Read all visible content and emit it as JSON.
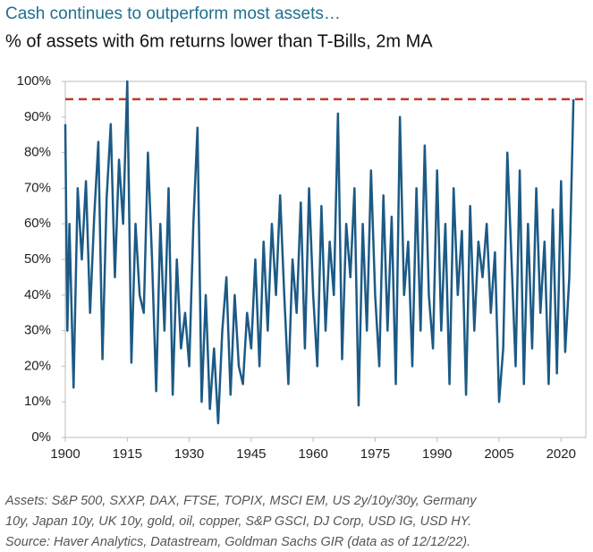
{
  "chart_data": {
    "type": "line",
    "title": "Cash continues to outperform most assets…",
    "subtitle": "% of assets with 6m returns lower than T-Bills, 2m MA",
    "x": [
      1900,
      1900.5,
      1901,
      1902,
      1903,
      1904,
      1905,
      1906,
      1907,
      1908,
      1909,
      1910,
      1911,
      1912,
      1913,
      1914,
      1915,
      1916,
      1917,
      1918,
      1919,
      1920,
      1921,
      1922,
      1923,
      1924,
      1925,
      1926,
      1927,
      1928,
      1929,
      1930,
      1931,
      1932,
      1933,
      1934,
      1935,
      1936,
      1937,
      1938,
      1939,
      1940,
      1941,
      1942,
      1943,
      1944,
      1945,
      1946,
      1947,
      1948,
      1949,
      1950,
      1951,
      1952,
      1953,
      1954,
      1955,
      1956,
      1957,
      1958,
      1959,
      1960,
      1961,
      1962,
      1963,
      1964,
      1965,
      1966,
      1967,
      1968,
      1969,
      1970,
      1971,
      1972,
      1973,
      1974,
      1975,
      1976,
      1977,
      1978,
      1979,
      1980,
      1981,
      1982,
      1983,
      1984,
      1985,
      1986,
      1987,
      1988,
      1989,
      1990,
      1991,
      1992,
      1993,
      1994,
      1995,
      1996,
      1997,
      1998,
      1999,
      2000,
      2001,
      2002,
      2003,
      2004,
      2005,
      2006,
      2007,
      2008,
      2009,
      2010,
      2011,
      2012,
      2013,
      2014,
      2015,
      2016,
      2017,
      2018,
      2019,
      2020,
      2021,
      2022,
      2023
    ],
    "series": [
      {
        "color": "#1c5a85",
        "values": [
          88,
          30,
          60,
          14,
          70,
          50,
          72,
          35,
          62,
          83,
          22,
          67,
          88,
          45,
          78,
          60,
          100,
          21,
          60,
          40,
          35,
          80,
          50,
          13,
          60,
          30,
          70,
          12,
          50,
          25,
          35,
          20,
          60,
          87,
          10,
          40,
          8,
          25,
          4,
          30,
          45,
          12,
          40,
          20,
          15,
          35,
          25,
          50,
          20,
          55,
          30,
          60,
          40,
          68,
          40,
          15,
          50,
          35,
          66,
          25,
          70,
          40,
          20,
          65,
          30,
          55,
          40,
          91,
          22,
          60,
          45,
          70,
          9,
          60,
          30,
          75,
          40,
          20,
          68,
          30,
          62,
          15,
          90,
          40,
          55,
          20,
          70,
          30,
          82,
          40,
          25,
          75,
          30,
          60,
          15,
          70,
          40,
          58,
          12,
          65,
          30,
          55,
          45,
          60,
          35,
          52,
          10,
          25,
          80,
          50,
          20,
          75,
          15,
          60,
          25,
          70,
          35,
          55,
          15,
          64,
          18,
          72,
          24,
          45,
          95
        ]
      }
    ],
    "reference_line": {
      "value": 95,
      "color": "#c0392b"
    },
    "xlim": [
      1900,
      2026
    ],
    "ylim": [
      0,
      100
    ],
    "xticks": [
      1900,
      1915,
      1930,
      1945,
      1960,
      1975,
      1990,
      2005,
      2020
    ],
    "yticks": [
      {
        "value": 0,
        "label": "0%"
      },
      {
        "value": 10,
        "label": "10%"
      },
      {
        "value": 20,
        "label": "20%"
      },
      {
        "value": 30,
        "label": "30%"
      },
      {
        "value": 40,
        "label": "40%"
      },
      {
        "value": 50,
        "label": "50%"
      },
      {
        "value": 60,
        "label": "60%"
      },
      {
        "value": 70,
        "label": "70%"
      },
      {
        "value": 80,
        "label": "80%"
      },
      {
        "value": 90,
        "label": "90%"
      },
      {
        "value": 100,
        "label": "100%"
      }
    ],
    "footnote_lines": [
      "Assets: S&P 500, SXXP, DAX, FTSE, TOPIX, MSCI EM, US 2y/10y/30y, Germany",
      "10y, Japan 10y, UK 10y, gold, oil, copper, S&P GSCI, DJ Corp, USD IG, USD HY.",
      "Source: Haver Analytics, Datastream, Goldman Sachs GIR (data as of 12/12/22)."
    ]
  }
}
